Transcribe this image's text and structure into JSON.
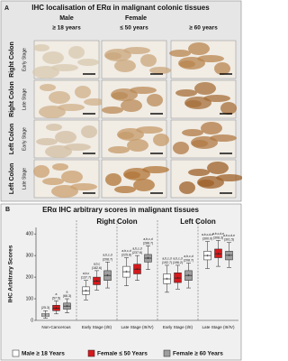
{
  "panel_a": {
    "label": "A",
    "title": "IHC localisation of ERα in malignant colonic tissues",
    "columns": [
      {
        "group": "Male",
        "age": "≥ 18 years"
      },
      {
        "group": "Female",
        "age": "≤ 50 years"
      },
      {
        "age": "≥ 60 years"
      }
    ],
    "rows": [
      {
        "site": "Right Colon",
        "stage": "Early Stage"
      },
      {
        "site": "Right Colon",
        "stage": "Late Stage"
      },
      {
        "site": "Left Colon",
        "stage": "Early Stage"
      },
      {
        "site": "Left Colon",
        "stage": "Late Stage"
      }
    ]
  },
  "chart_data": {
    "type": "box",
    "label": "B",
    "title": "ERα IHC arbitrary scores in malignant tissues",
    "groups": [
      {
        "name": "Right Colon",
        "from": 1,
        "to": 2
      },
      {
        "name": "Left Colon",
        "from": 3,
        "to": 4
      }
    ],
    "y_label": "IHC Arbitrary Scores",
    "categories": [
      "Non-Cancerous",
      "Early Stage (I/II)",
      "Late Stage (III/IV)",
      "Early Stage (I/II)",
      "Late Stage (III/IV)"
    ],
    "ylim": [
      0,
      430
    ],
    "yticks": [
      0,
      100,
      200,
      300,
      400
    ],
    "series": [
      {
        "name": "Male ≥ 18 Years",
        "color": "#ffffff",
        "boxes": [
          [
            10,
            18,
            25,
            32,
            45
          ],
          [
            95,
            120,
            137,
            155,
            185
          ],
          [
            160,
            200,
            225,
            250,
            290
          ],
          [
            130,
            170,
            192,
            215,
            255
          ],
          [
            240,
            280,
            300,
            320,
            365
          ]
        ],
        "values": [
          25.3,
          137.7,
          225.6,
          192.7,
          300.0
        ],
        "value_labels": [
          "(25.3)",
          "(137.7)",
          "(225.6)",
          "(192.7)",
          "(300.0)"
        ],
        "annotations": [
          null,
          "a,b,c",
          "a,b,c,d",
          "a,b,c,d",
          "a,b,c,d,e"
        ]
      },
      {
        "name": "Female ≤ 50 Years",
        "color": "#d7191c",
        "boxes": [
          [
            30,
            45,
            57,
            70,
            90
          ],
          [
            140,
            165,
            182,
            200,
            230
          ],
          [
            185,
            215,
            237,
            260,
            300
          ],
          [
            145,
            175,
            196,
            220,
            255
          ],
          [
            250,
            290,
            308,
            330,
            370
          ]
        ],
        "values": [
          57.5,
          182.6,
          237.6,
          196.2,
          308.3
        ],
        "value_labels": [
          "(57.5)",
          "(182.6)",
          "(237.6)",
          "(196.2)",
          "(308.3)"
        ],
        "annotations": [
          "a",
          "a,b,c",
          "a,b,c,d",
          "a,b,c,d",
          "a,b,c,d,e"
        ]
      },
      {
        "name": "Female ≥ 60 Years",
        "color": "#9e9e9e",
        "boxes": [
          [
            35,
            52,
            66,
            80,
            100
          ],
          [
            150,
            185,
            208,
            230,
            270
          ],
          [
            235,
            270,
            288,
            305,
            345
          ],
          [
            150,
            185,
            208,
            230,
            265
          ],
          [
            245,
            280,
            301,
            320,
            360
          ]
        ],
        "values": [
          66.3,
          208.7,
          288.7,
          208.7,
          301.5
        ],
        "value_labels": [
          "(66.3)",
          "(208.7)",
          "(288.7)",
          "(208.7)",
          "(301.5)"
        ],
        "annotations": [
          "a",
          "a,b,c,d",
          "a,b,c,d",
          "a,b,c,d",
          "a,b,c,d,e"
        ]
      }
    ]
  }
}
